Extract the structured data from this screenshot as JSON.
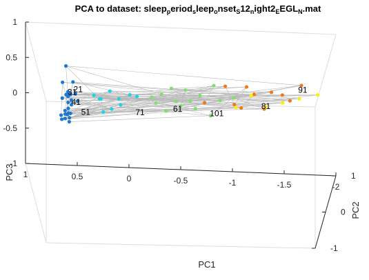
{
  "chart_data": {
    "type": "scatter",
    "projection": "3d",
    "title": {
      "segments": [
        {
          "text": "PCA to dataset: sleep",
          "sub": false
        },
        {
          "text": "p",
          "sub": true
        },
        {
          "text": "eriod",
          "sub": false
        },
        {
          "text": "s",
          "sub": true
        },
        {
          "text": "leep",
          "sub": false
        },
        {
          "text": "o",
          "sub": true
        },
        {
          "text": "nset",
          "sub": false
        },
        {
          "text": "S",
          "sub": true
        },
        {
          "text": "12",
          "sub": false
        },
        {
          "text": "n",
          "sub": true
        },
        {
          "text": "ight2",
          "sub": false
        },
        {
          "text": "E",
          "sub": true
        },
        {
          "text": "EGL",
          "sub": false
        },
        {
          "text": "N",
          "sub": true
        },
        {
          "text": ".mat",
          "sub": false
        }
      ]
    },
    "axes": {
      "x": {
        "label": "PC1",
        "range": [
          1,
          -2
        ],
        "ticks": [
          1,
          0.5,
          0,
          -0.5,
          -1,
          -1.5,
          -2
        ],
        "tick_labels": [
          "1",
          "0.5",
          "0",
          "-0.5",
          "-1",
          "-1.5",
          "-2"
        ]
      },
      "y": {
        "label": "PC2",
        "range": [
          -1,
          1
        ],
        "ticks": [
          -1,
          0,
          1
        ],
        "tick_labels": [
          "-1",
          "0",
          "1"
        ]
      },
      "z": {
        "label": "PC3",
        "range": [
          -1,
          1
        ],
        "ticks": [
          -1,
          -0.5,
          0,
          0.5,
          1
        ],
        "tick_labels": [
          "-1",
          "-0.5",
          "0",
          "0.5",
          "1"
        ]
      }
    },
    "grid": false,
    "box": true,
    "clusters": [
      {
        "color": "#1f77d0",
        "points": [
          [
            0.72,
            -0.6,
            0.92
          ],
          [
            0.69,
            -0.55,
            0.86
          ],
          [
            0.71,
            -0.5,
            0.8
          ],
          [
            0.67,
            -0.45,
            0.72
          ],
          [
            0.7,
            -0.4,
            0.66
          ],
          [
            0.66,
            -0.35,
            0.6
          ],
          [
            0.69,
            -0.3,
            0.52
          ],
          [
            0.72,
            -0.25,
            0.46
          ],
          [
            0.68,
            -0.2,
            0.4
          ],
          [
            0.65,
            -0.1,
            0.34
          ],
          [
            0.7,
            -0.05,
            0.3
          ],
          [
            0.67,
            0.05,
            0.24
          ],
          [
            0.73,
            0.1,
            0.2
          ],
          [
            0.64,
            0.15,
            0.14
          ],
          [
            0.68,
            0.2,
            0.1
          ],
          [
            0.71,
            0.25,
            0.06
          ],
          [
            0.63,
            0.3,
            0.0
          ],
          [
            0.66,
            0.35,
            0.76
          ],
          [
            0.74,
            -0.15,
            0.58
          ],
          [
            0.62,
            -0.65,
            0.82
          ],
          [
            0.69,
            0.4,
            0.5
          ],
          [
            0.65,
            0.45,
            0.3
          ],
          [
            0.7,
            -0.7,
            0.94
          ],
          [
            0.6,
            0.2,
            0.62
          ],
          [
            0.61,
            -0.25,
            0.7
          ]
        ]
      },
      {
        "color": "#1fd3e0",
        "points": [
          [
            0.35,
            -0.15,
            0.58
          ],
          [
            0.25,
            -0.3,
            0.78
          ],
          [
            0.15,
            -0.2,
            0.62
          ],
          [
            0.32,
            0.1,
            0.45
          ],
          [
            0.12,
            0.05,
            0.4
          ],
          [
            0.05,
            -0.6,
            0.9
          ],
          [
            0.2,
            0.3,
            0.2
          ],
          [
            0.4,
            0.0,
            0.55
          ],
          [
            -0.05,
            0.1,
            0.5
          ],
          [
            0.28,
            0.4,
            0.1
          ]
        ]
      },
      {
        "color": "#7fe070",
        "points": [
          [
            -0.4,
            -0.5,
            0.95
          ],
          [
            -0.55,
            -0.35,
            0.85
          ],
          [
            -0.3,
            -0.2,
            0.7
          ],
          [
            -0.7,
            -0.1,
            0.65
          ],
          [
            -0.85,
            -0.3,
            0.9
          ],
          [
            -0.2,
            0.0,
            0.55
          ],
          [
            -0.45,
            0.1,
            0.45
          ],
          [
            -0.65,
            0.2,
            0.3
          ],
          [
            -0.5,
            0.35,
            0.25
          ],
          [
            -0.9,
            0.25,
            0.4
          ],
          [
            -0.35,
            0.3,
            0.2
          ],
          [
            -1.05,
            -0.05,
            0.6
          ],
          [
            -0.6,
            -0.45,
            0.75
          ],
          [
            -0.8,
            0.4,
            0.1
          ],
          [
            -0.25,
            0.35,
            0.28
          ]
        ]
      },
      {
        "color": "#f07818",
        "points": [
          [
            -1.3,
            -0.7,
            1.0
          ],
          [
            -1.6,
            -0.6,
            0.95
          ],
          [
            -1.15,
            -0.5,
            0.7
          ],
          [
            -0.75,
            -0.2,
            0.6
          ],
          [
            -1.45,
            -0.15,
            0.75
          ],
          [
            -1.75,
            0.0,
            0.78
          ],
          [
            -1.05,
            0.15,
            0.4
          ],
          [
            -1.35,
            0.25,
            0.3
          ],
          [
            -1.6,
            0.4,
            0.35
          ],
          [
            -0.95,
            0.35,
            0.55
          ],
          [
            -1.2,
            -0.35,
            0.92
          ]
        ]
      },
      {
        "color": "#f5f010",
        "points": [
          [
            -1.4,
            -0.3,
            0.62
          ],
          [
            -1.75,
            -0.25,
            0.72
          ],
          [
            -1.55,
            0.05,
            0.5
          ],
          [
            -1.2,
            0.6,
            0.3
          ],
          [
            -1.9,
            0.2,
            0.55
          ],
          [
            -1.05,
            0.55,
            0.15
          ]
        ]
      }
    ],
    "point_labels": [
      {
        "text": "21",
        "x": 0.66,
        "y": -0.6,
        "z": 0.92
      },
      {
        "text": "31",
        "x": 0.7,
        "y": -0.32,
        "z": 0.72
      },
      {
        "text": "41",
        "x": 0.66,
        "y": -0.35,
        "z": 0.6
      },
      {
        "text": "51",
        "x": 0.56,
        "y": -0.38,
        "z": 0.48
      },
      {
        "text": "61",
        "x": -0.42,
        "y": -0.2,
        "z": 0.46
      },
      {
        "text": "71",
        "x": -0.02,
        "y": -0.32,
        "z": 0.46
      },
      {
        "text": "81",
        "x": -1.32,
        "y": 0.25,
        "z": 0.3
      },
      {
        "text": "91",
        "x": -1.72,
        "y": -0.05,
        "z": 0.7
      },
      {
        "text": "101",
        "x": -0.8,
        "y": 0.1,
        "z": 0.25
      }
    ],
    "connection_color": "#b8b8b8"
  }
}
